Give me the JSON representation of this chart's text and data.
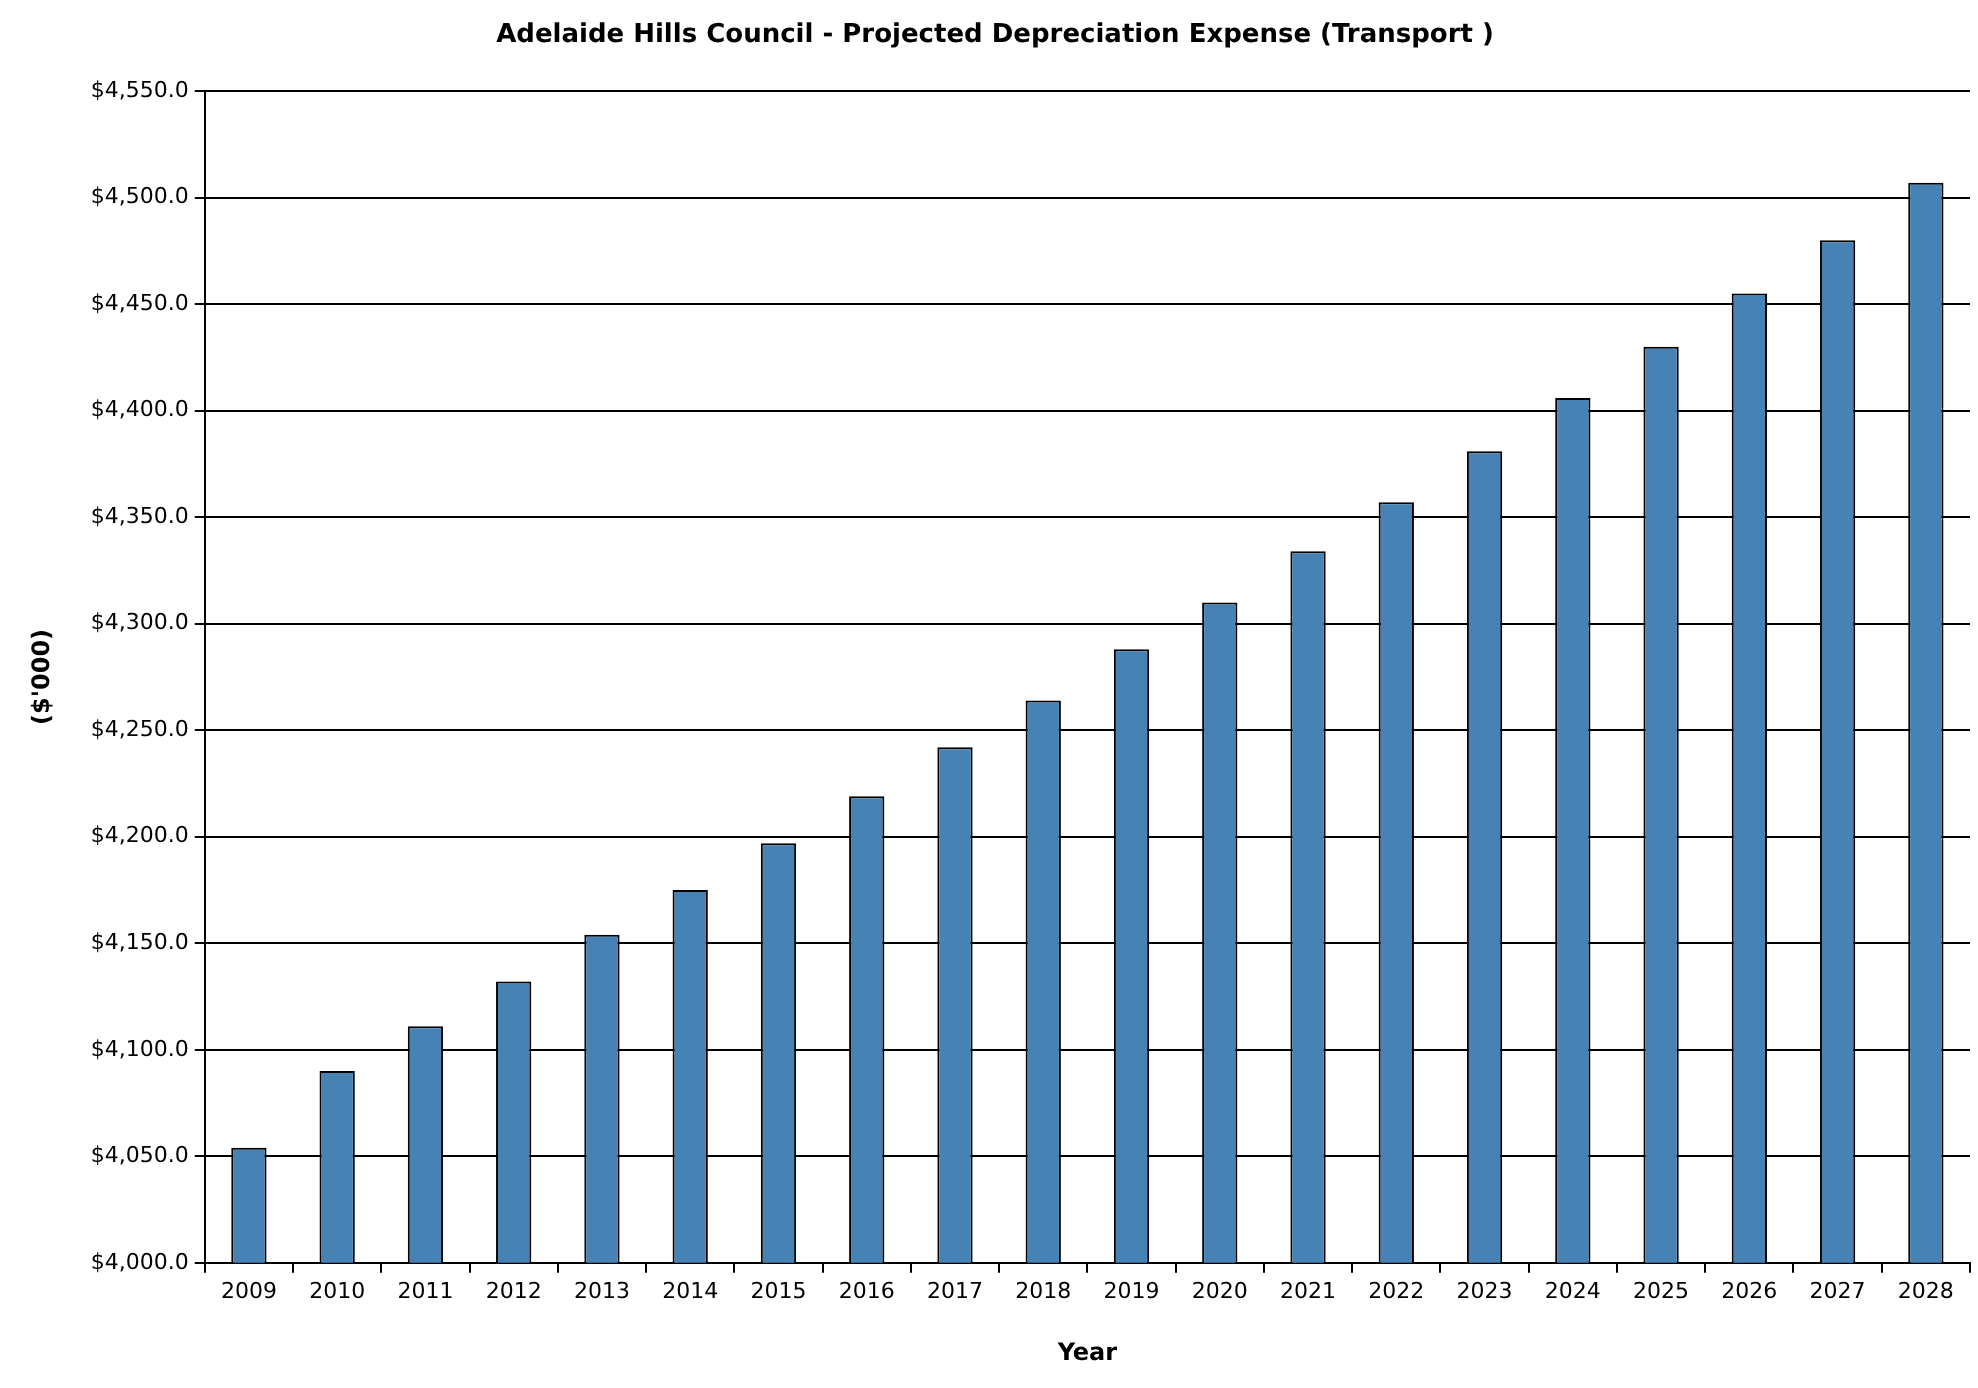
{
  "chart_data": {
    "type": "bar",
    "title": "Adelaide Hills Council - Projected Depreciation Expense (Transport )",
    "xlabel": "Year",
    "ylabel": "($'000)",
    "categories": [
      "2009",
      "2010",
      "2011",
      "2012",
      "2013",
      "2014",
      "2015",
      "2016",
      "2017",
      "2018",
      "2019",
      "2020",
      "2021",
      "2022",
      "2023",
      "2024",
      "2025",
      "2026",
      "2027",
      "2028"
    ],
    "values": [
      4054,
      4090,
      4111,
      4132,
      4154,
      4175,
      4197,
      4219,
      4242,
      4264,
      4288,
      4310,
      4334,
      4357,
      4381,
      4406,
      4430,
      4455,
      4480,
      4507
    ],
    "color": "#4682b4",
    "ylim": [
      4000,
      4550
    ],
    "yticks": [
      {
        "value": 4000,
        "label": "$4,000.0"
      },
      {
        "value": 4050,
        "label": "$4,050.0"
      },
      {
        "value": 4100,
        "label": "$4,100.0"
      },
      {
        "value": 4150,
        "label": "$4,150.0"
      },
      {
        "value": 4200,
        "label": "$4,200.0"
      },
      {
        "value": 4250,
        "label": "$4,250.0"
      },
      {
        "value": 4300,
        "label": "$4,300.0"
      },
      {
        "value": 4350,
        "label": "$4,350.0"
      },
      {
        "value": 4400,
        "label": "$4,400.0"
      },
      {
        "value": 4450,
        "label": "$4,450.0"
      },
      {
        "value": 4500,
        "label": "$4,500.0"
      },
      {
        "value": 4550,
        "label": "$4,550.0"
      }
    ],
    "grid": "y",
    "legend": false
  }
}
